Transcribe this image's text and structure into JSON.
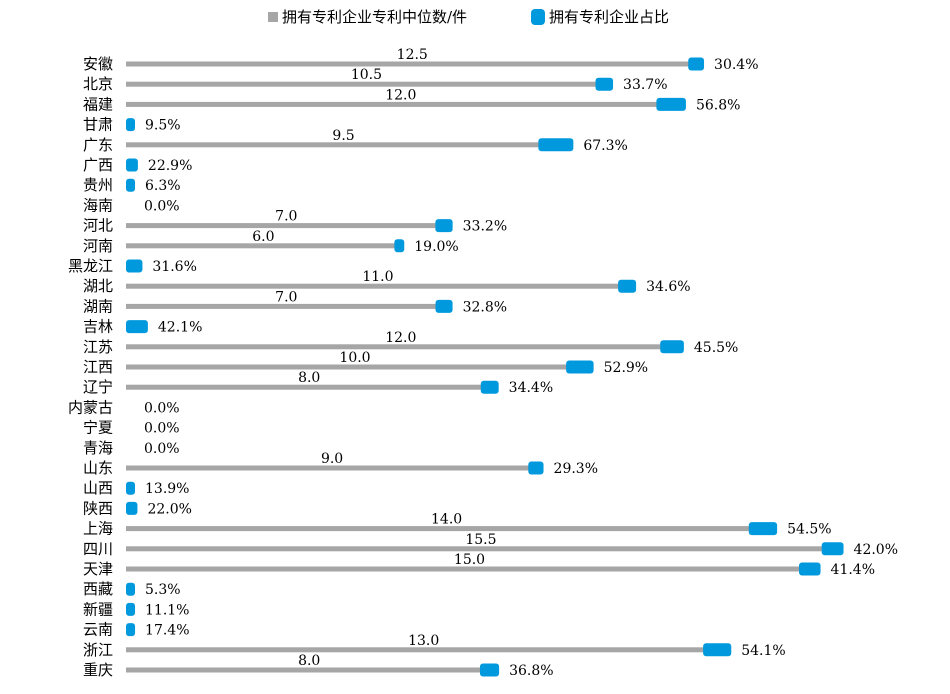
{
  "chart_data": {
    "type": "bar",
    "orientation": "horizontal",
    "legend_position": "top",
    "grid": false,
    "categories": [
      "安徽",
      "北京",
      "福建",
      "甘肃",
      "广东",
      "广西",
      "贵州",
      "海南",
      "河北",
      "河南",
      "黑龙江",
      "湖北",
      "湖南",
      "吉林",
      "江苏",
      "江西",
      "辽宁",
      "内蒙古",
      "宁夏",
      "青海",
      "山东",
      "山西",
      "陕西",
      "上海",
      "四川",
      "天津",
      "西藏",
      "新疆",
      "云南",
      "浙江",
      "重庆"
    ],
    "series": [
      {
        "name": "拥有专利企业专利中位数/件",
        "color": "#a6a6a6",
        "values": [
          12.5,
          10.5,
          12.0,
          0,
          9.5,
          0,
          0,
          0,
          7.0,
          6.0,
          0,
          11.0,
          7.0,
          0,
          12.0,
          10.0,
          8.0,
          0,
          0,
          0,
          9.0,
          0,
          0,
          14.0,
          15.5,
          15.0,
          0,
          0,
          0,
          13.0,
          8.0
        ],
        "labels": [
          "12.5",
          "10.5",
          "12.0",
          "",
          "9.5",
          "",
          "",
          "",
          "7.0",
          "6.0",
          "",
          "11.0",
          "7.0",
          "",
          "12.0",
          "10.0",
          "8.0",
          "",
          "",
          "",
          "9.0",
          "",
          "",
          "14.0",
          "15.5",
          "15.0",
          "",
          "",
          "",
          "13.0",
          "8.0"
        ]
      },
      {
        "name": "拥有专利企业占比",
        "color": "#0099dd",
        "values": [
          30.4,
          33.7,
          56.8,
          9.5,
          67.3,
          22.9,
          6.3,
          0.0,
          33.2,
          19.0,
          31.6,
          34.6,
          32.8,
          42.1,
          45.5,
          52.9,
          34.4,
          0.0,
          0.0,
          0.0,
          29.3,
          13.9,
          22.0,
          54.5,
          42.0,
          41.4,
          5.3,
          11.1,
          17.4,
          54.1,
          36.8
        ],
        "labels": [
          "30.4%",
          "33.7%",
          "56.8%",
          "9.5%",
          "67.3%",
          "22.9%",
          "6.3%",
          "0.0%",
          "33.2%",
          "19.0%",
          "31.6%",
          "34.6%",
          "32.8%",
          "42.1%",
          "45.5%",
          "52.9%",
          "34.4%",
          "0.0%",
          "0.0%",
          "0.0%",
          "29.3%",
          "13.9%",
          "22.0%",
          "54.5%",
          "42.0%",
          "41.4%",
          "5.3%",
          "11.1%",
          "17.4%",
          "54.1%",
          "36.8%"
        ]
      }
    ]
  }
}
